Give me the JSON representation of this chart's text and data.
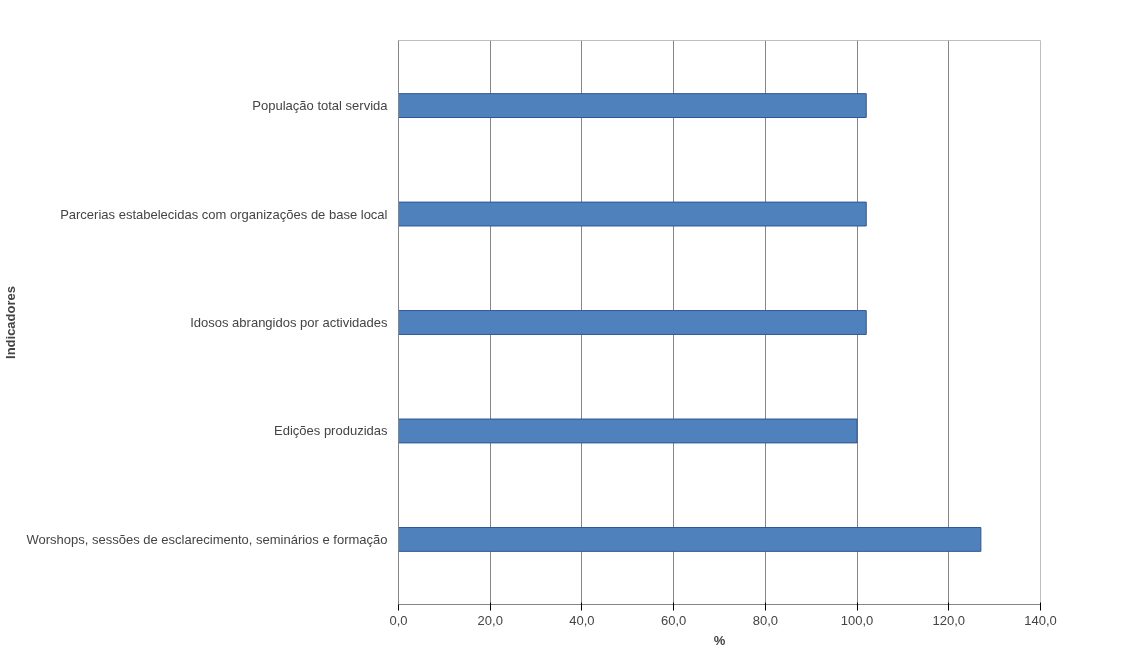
{
  "chart_data": {
    "type": "bar",
    "orientation": "horizontal",
    "xlabel": "%",
    "ylabel": "Indicadores",
    "categories": [
      "População total servida",
      "Parcerias estabelecidas com organizações de base local",
      "Idosos abrangidos por actividades",
      "Edições produzidas",
      "Worshops, sessões de esclarecimento, seminários e formação"
    ],
    "values": [
      102,
      102,
      102,
      100,
      127
    ],
    "color": "#4f81bd",
    "xlim": [
      0,
      140
    ],
    "xticks": [
      {
        "value": 0,
        "label": "0,0"
      },
      {
        "value": 20,
        "label": "20,0"
      },
      {
        "value": 40,
        "label": "40,0"
      },
      {
        "value": 60,
        "label": "60,0"
      },
      {
        "value": 80,
        "label": "80,0"
      },
      {
        "value": 100,
        "label": "100,0"
      },
      {
        "value": 120,
        "label": "120,0"
      },
      {
        "value": 140,
        "label": "140,0"
      }
    ],
    "grid": "x"
  }
}
